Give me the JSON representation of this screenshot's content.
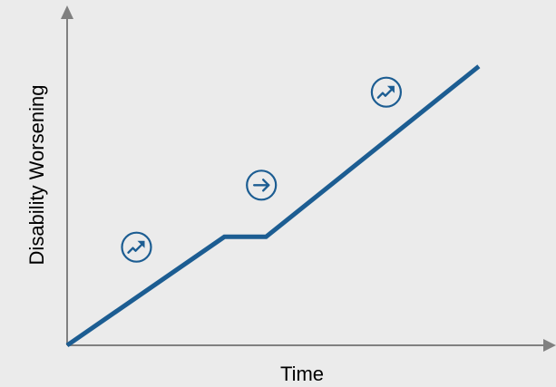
{
  "chart_data": {
    "type": "line",
    "xlabel": "Time",
    "ylabel": "Disability Worsening",
    "grid": false,
    "series": [
      {
        "points": [
          [
            0,
            0
          ],
          [
            3.4,
            2.1
          ],
          [
            4.3,
            2.1
          ],
          [
            8.9,
            5.4
          ]
        ],
        "color": "#1c5d92"
      }
    ],
    "annotations": [
      {
        "icon": "trending-up-circle-icon",
        "x": 1.5,
        "y": 1.9
      },
      {
        "icon": "arrow-right-circle-icon",
        "x": 4.2,
        "y": 3.1
      },
      {
        "icon": "trending-up-circle-icon",
        "x": 6.9,
        "y": 4.9
      }
    ]
  },
  "colors": {
    "background": "#ebebeb",
    "axis": "#808080",
    "line": "#1c5d92",
    "icon": "#1c5d92"
  }
}
